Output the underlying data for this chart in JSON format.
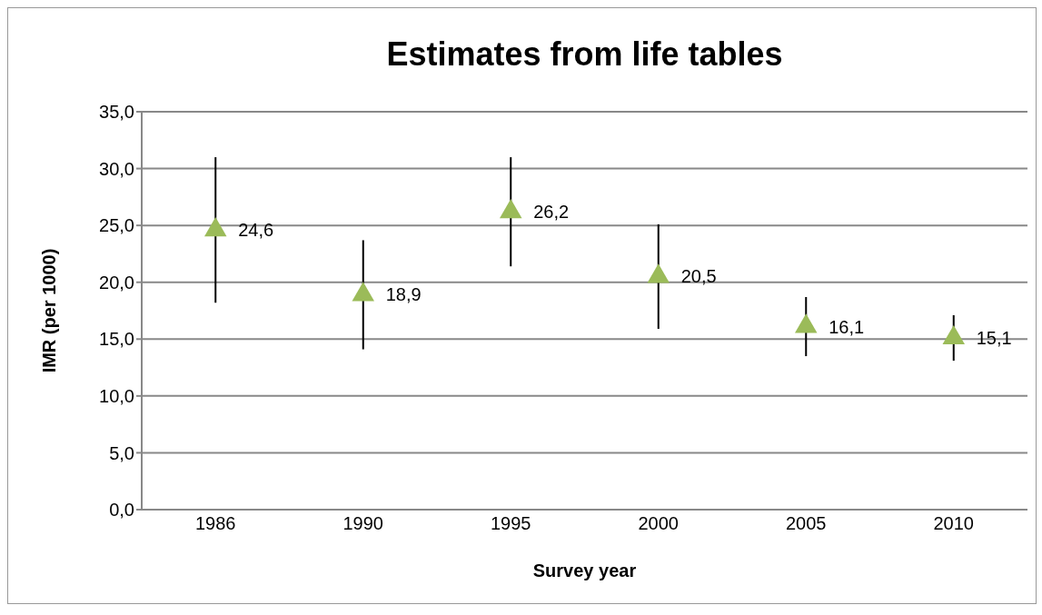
{
  "chart_data": {
    "type": "scatter",
    "title": "Estimates from life tables",
    "xlabel": "Survey year",
    "ylabel": "IMR (per 1000)",
    "categories": [
      "1986",
      "1990",
      "1995",
      "2000",
      "2005",
      "2010"
    ],
    "series": [
      {
        "color": "#9bbb59",
        "values": [
          24.6,
          18.9,
          26.2,
          20.5,
          16.1,
          15.1
        ],
        "errors": [
          [
            18.2,
            31.0
          ],
          [
            14.1,
            23.7
          ],
          [
            21.4,
            31.0
          ],
          [
            15.9,
            25.1
          ],
          [
            13.5,
            18.7
          ],
          [
            13.1,
            17.1
          ]
        ],
        "value_labels": [
          "24,6",
          "18,9",
          "26,2",
          "20,5",
          "16,1",
          "15,1"
        ]
      }
    ],
    "ylim": [
      0,
      35
    ],
    "yticks": [
      {
        "value": 0,
        "label": "0,0"
      },
      {
        "value": 5,
        "label": "5,0"
      },
      {
        "value": 10,
        "label": "10,0"
      },
      {
        "value": 15,
        "label": "15,0"
      },
      {
        "value": 20,
        "label": "20,0"
      },
      {
        "value": 25,
        "label": "25,0"
      },
      {
        "value": 30,
        "label": "30,0"
      },
      {
        "value": 35,
        "label": "35,0"
      }
    ],
    "grid": "y",
    "marker": "triangle",
    "legend": false
  }
}
